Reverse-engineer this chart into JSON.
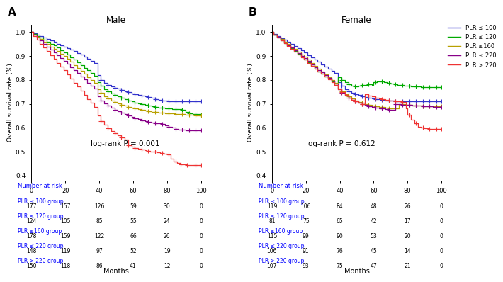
{
  "title_A": "Male",
  "title_B": "Female",
  "label_A": "A",
  "label_B": "B",
  "ylabel": "Overall survival rate (%)",
  "xlabel": "Months",
  "logrank_A": "log-rank P = 0.001",
  "logrank_B": "log-rank P = 0.612",
  "xlim": [
    0,
    100
  ],
  "ylim": [
    0.38,
    1.03
  ],
  "xticks": [
    0,
    20,
    40,
    60,
    80,
    100
  ],
  "yticks": [
    0.4,
    0.5,
    0.6,
    0.7,
    0.8,
    0.9,
    1.0
  ],
  "colors": {
    "plr100": "#3333cc",
    "plr120": "#00aa00",
    "plr160": "#b8a000",
    "plr220": "#880088",
    "plr220p": "#ee3333"
  },
  "legend_labels": [
    "PLR ≤ 100",
    "PLR ≤ 120",
    "PLR ≤160",
    "PLR ≤ 220",
    "PLR > 220"
  ],
  "male": {
    "plr100": {
      "times": [
        0,
        1,
        3,
        5,
        7,
        9,
        11,
        13,
        15,
        17,
        19,
        21,
        23,
        25,
        27,
        29,
        31,
        33,
        35,
        37,
        39,
        41,
        43,
        45,
        47,
        49,
        51,
        53,
        55,
        57,
        59,
        61,
        63,
        65,
        67,
        69,
        71,
        73,
        75,
        77,
        79,
        81,
        83,
        85,
        87,
        89,
        91,
        93,
        95,
        97,
        100
      ],
      "surv": [
        1.0,
        0.994,
        0.988,
        0.983,
        0.977,
        0.971,
        0.965,
        0.958,
        0.952,
        0.946,
        0.94,
        0.934,
        0.927,
        0.921,
        0.913,
        0.905,
        0.897,
        0.889,
        0.88,
        0.872,
        0.82,
        0.8,
        0.788,
        0.778,
        0.773,
        0.768,
        0.763,
        0.758,
        0.752,
        0.748,
        0.744,
        0.74,
        0.737,
        0.734,
        0.73,
        0.727,
        0.724,
        0.721,
        0.718,
        0.715,
        0.713,
        0.712,
        0.711,
        0.71,
        0.71,
        0.71,
        0.71,
        0.71,
        0.71,
        0.71,
        0.71
      ],
      "censors": [
        41,
        45,
        49,
        53,
        57,
        61,
        65,
        69,
        73,
        77,
        81,
        85,
        89,
        93,
        97,
        100
      ]
    },
    "plr120": {
      "times": [
        0,
        1,
        3,
        5,
        7,
        9,
        11,
        13,
        15,
        17,
        19,
        21,
        23,
        25,
        27,
        29,
        31,
        33,
        35,
        37,
        39,
        41,
        43,
        45,
        47,
        49,
        51,
        53,
        55,
        57,
        59,
        61,
        63,
        65,
        67,
        69,
        71,
        73,
        75,
        77,
        79,
        81,
        83,
        85,
        87,
        89,
        91,
        93,
        95,
        97,
        100
      ],
      "surv": [
        1.0,
        0.992,
        0.984,
        0.976,
        0.968,
        0.96,
        0.952,
        0.944,
        0.935,
        0.925,
        0.915,
        0.905,
        0.895,
        0.884,
        0.873,
        0.862,
        0.851,
        0.84,
        0.829,
        0.818,
        0.79,
        0.775,
        0.762,
        0.752,
        0.744,
        0.737,
        0.731,
        0.726,
        0.72,
        0.715,
        0.71,
        0.706,
        0.702,
        0.698,
        0.695,
        0.692,
        0.689,
        0.687,
        0.685,
        0.683,
        0.681,
        0.68,
        0.679,
        0.678,
        0.677,
        0.676,
        0.665,
        0.66,
        0.658,
        0.656,
        0.655
      ],
      "censors": [
        41,
        45,
        49,
        53,
        57,
        61,
        65,
        69,
        73,
        77,
        81,
        85,
        89,
        93,
        97,
        100
      ]
    },
    "plr160": {
      "times": [
        0,
        1,
        3,
        5,
        7,
        9,
        11,
        13,
        15,
        17,
        19,
        21,
        23,
        25,
        27,
        29,
        31,
        33,
        35,
        37,
        39,
        41,
        43,
        45,
        47,
        49,
        51,
        53,
        55,
        57,
        59,
        61,
        63,
        65,
        67,
        69,
        71,
        73,
        75,
        77,
        79,
        81,
        83,
        85,
        87,
        89,
        91,
        93,
        95,
        97,
        100
      ],
      "surv": [
        1.0,
        0.99,
        0.98,
        0.97,
        0.96,
        0.95,
        0.94,
        0.93,
        0.92,
        0.91,
        0.9,
        0.888,
        0.876,
        0.863,
        0.85,
        0.837,
        0.825,
        0.812,
        0.8,
        0.788,
        0.76,
        0.745,
        0.732,
        0.722,
        0.715,
        0.708,
        0.702,
        0.697,
        0.692,
        0.688,
        0.684,
        0.68,
        0.677,
        0.674,
        0.671,
        0.669,
        0.667,
        0.665,
        0.663,
        0.662,
        0.661,
        0.66,
        0.659,
        0.658,
        0.657,
        0.656,
        0.655,
        0.654,
        0.653,
        0.652,
        0.652
      ],
      "censors": [
        41,
        45,
        49,
        53,
        57,
        61,
        65,
        69,
        73,
        77,
        81,
        85,
        89,
        93,
        97,
        100
      ]
    },
    "plr220": {
      "times": [
        0,
        1,
        3,
        5,
        7,
        9,
        11,
        13,
        15,
        17,
        19,
        21,
        23,
        25,
        27,
        29,
        31,
        33,
        35,
        37,
        39,
        41,
        43,
        45,
        47,
        49,
        51,
        53,
        55,
        57,
        59,
        61,
        63,
        65,
        67,
        69,
        71,
        73,
        75,
        77,
        79,
        81,
        83,
        85,
        87,
        89,
        91,
        93,
        95,
        97,
        100
      ],
      "surv": [
        1.0,
        0.988,
        0.976,
        0.964,
        0.952,
        0.94,
        0.928,
        0.916,
        0.904,
        0.892,
        0.88,
        0.867,
        0.854,
        0.841,
        0.828,
        0.815,
        0.802,
        0.789,
        0.776,
        0.763,
        0.73,
        0.715,
        0.702,
        0.692,
        0.683,
        0.675,
        0.668,
        0.662,
        0.656,
        0.65,
        0.645,
        0.64,
        0.636,
        0.632,
        0.629,
        0.626,
        0.623,
        0.62,
        0.618,
        0.616,
        0.61,
        0.605,
        0.6,
        0.596,
        0.593,
        0.591,
        0.59,
        0.589,
        0.589,
        0.589,
        0.589
      ],
      "censors": [
        41,
        45,
        49,
        53,
        57,
        61,
        65,
        69,
        73,
        77,
        81,
        85,
        89,
        93,
        97,
        100
      ]
    },
    "plr220p": {
      "times": [
        0,
        1,
        3,
        5,
        7,
        9,
        11,
        13,
        15,
        17,
        19,
        21,
        23,
        25,
        27,
        29,
        31,
        33,
        35,
        37,
        39,
        41,
        43,
        45,
        47,
        49,
        51,
        53,
        55,
        57,
        59,
        61,
        63,
        65,
        67,
        68,
        70,
        72,
        74,
        76,
        78,
        80,
        82,
        84,
        86,
        88,
        90,
        92,
        95,
        97,
        100
      ],
      "surv": [
        1.0,
        0.984,
        0.968,
        0.952,
        0.936,
        0.92,
        0.904,
        0.888,
        0.872,
        0.856,
        0.84,
        0.823,
        0.806,
        0.789,
        0.772,
        0.755,
        0.738,
        0.721,
        0.704,
        0.688,
        0.65,
        0.628,
        0.612,
        0.598,
        0.586,
        0.576,
        0.568,
        0.56,
        0.552,
        0.528,
        0.52,
        0.515,
        0.511,
        0.508,
        0.505,
        0.503,
        0.501,
        0.499,
        0.497,
        0.495,
        0.493,
        0.49,
        0.47,
        0.46,
        0.452,
        0.448,
        0.446,
        0.445,
        0.445,
        0.445,
        0.445
      ],
      "censors": [
        41,
        45,
        49,
        53,
        57,
        61,
        65,
        69,
        73,
        77,
        81,
        85,
        88,
        92,
        97,
        100
      ]
    }
  },
  "female": {
    "plr100": {
      "times": [
        0,
        1,
        3,
        5,
        7,
        9,
        11,
        13,
        15,
        17,
        19,
        21,
        23,
        25,
        27,
        29,
        31,
        33,
        35,
        37,
        39,
        41,
        43,
        45,
        47,
        49,
        51,
        53,
        55,
        57,
        59,
        61,
        63,
        65,
        67,
        69,
        71,
        73,
        75,
        77,
        79,
        81,
        83,
        85,
        87,
        89,
        91,
        93,
        95,
        97,
        100
      ],
      "surv": [
        1.0,
        0.992,
        0.983,
        0.975,
        0.967,
        0.959,
        0.95,
        0.941,
        0.932,
        0.923,
        0.914,
        0.904,
        0.895,
        0.885,
        0.876,
        0.866,
        0.856,
        0.847,
        0.837,
        0.828,
        0.79,
        0.775,
        0.762,
        0.752,
        0.745,
        0.74,
        0.736,
        0.732,
        0.729,
        0.726,
        0.723,
        0.721,
        0.719,
        0.717,
        0.715,
        0.714,
        0.713,
        0.712,
        0.712,
        0.711,
        0.711,
        0.711,
        0.71,
        0.71,
        0.71,
        0.71,
        0.71,
        0.71,
        0.71,
        0.71,
        0.71
      ],
      "censors": [
        41,
        45,
        49,
        53,
        57,
        61,
        65,
        69,
        73,
        77,
        81,
        85,
        89,
        93,
        97,
        100
      ]
    },
    "plr120": {
      "times": [
        0,
        1,
        3,
        5,
        7,
        9,
        11,
        13,
        15,
        17,
        19,
        21,
        23,
        25,
        27,
        29,
        31,
        33,
        35,
        37,
        39,
        41,
        43,
        45,
        47,
        49,
        51,
        53,
        55,
        57,
        59,
        60,
        62,
        64,
        66,
        68,
        70,
        72,
        74,
        76,
        78,
        80,
        82,
        84,
        86,
        88,
        90,
        92,
        95,
        97,
        100
      ],
      "surv": [
        1.0,
        0.988,
        0.976,
        0.965,
        0.954,
        0.943,
        0.932,
        0.921,
        0.91,
        0.898,
        0.886,
        0.873,
        0.86,
        0.848,
        0.836,
        0.825,
        0.814,
        0.804,
        0.794,
        0.784,
        0.81,
        0.8,
        0.79,
        0.782,
        0.776,
        0.772,
        0.775,
        0.778,
        0.78,
        0.782,
        0.78,
        0.79,
        0.795,
        0.793,
        0.79,
        0.787,
        0.784,
        0.782,
        0.78,
        0.778,
        0.776,
        0.775,
        0.774,
        0.773,
        0.772,
        0.771,
        0.77,
        0.77,
        0.77,
        0.77,
        0.77
      ],
      "censors": [
        41,
        45,
        49,
        53,
        57,
        61,
        65,
        69,
        73,
        77,
        81,
        85,
        89,
        93,
        97,
        100
      ]
    },
    "plr160": {
      "times": [
        0,
        1,
        3,
        5,
        7,
        9,
        11,
        13,
        15,
        17,
        19,
        21,
        23,
        25,
        27,
        29,
        31,
        33,
        35,
        37,
        39,
        41,
        43,
        45,
        47,
        49,
        51,
        53,
        55,
        57,
        59,
        61,
        63,
        65,
        67,
        69,
        71,
        73,
        75,
        77,
        79,
        81,
        83,
        85,
        87,
        89,
        91,
        93,
        95,
        97,
        100
      ],
      "surv": [
        1.0,
        0.99,
        0.98,
        0.97,
        0.96,
        0.95,
        0.94,
        0.929,
        0.918,
        0.907,
        0.896,
        0.884,
        0.872,
        0.86,
        0.848,
        0.836,
        0.824,
        0.812,
        0.8,
        0.788,
        0.765,
        0.752,
        0.74,
        0.73,
        0.722,
        0.715,
        0.709,
        0.704,
        0.7,
        0.696,
        0.693,
        0.69,
        0.688,
        0.686,
        0.684,
        0.682,
        0.681,
        0.68,
        0.7,
        0.698,
        0.696,
        0.695,
        0.694,
        0.693,
        0.692,
        0.691,
        0.69,
        0.689,
        0.689,
        0.689,
        0.689
      ],
      "censors": [
        41,
        45,
        49,
        53,
        57,
        61,
        65,
        69,
        73,
        77,
        81,
        85,
        89,
        93,
        97,
        100
      ]
    },
    "plr220": {
      "times": [
        0,
        1,
        3,
        5,
        7,
        9,
        11,
        13,
        15,
        17,
        19,
        21,
        23,
        25,
        27,
        29,
        31,
        33,
        35,
        37,
        39,
        41,
        43,
        45,
        47,
        49,
        51,
        53,
        55,
        57,
        59,
        61,
        63,
        65,
        67,
        69,
        71,
        73,
        75,
        77,
        79,
        81,
        83,
        85,
        87,
        89,
        91,
        93,
        95,
        97,
        100
      ],
      "surv": [
        1.0,
        0.99,
        0.979,
        0.968,
        0.957,
        0.946,
        0.935,
        0.924,
        0.913,
        0.901,
        0.89,
        0.878,
        0.866,
        0.854,
        0.842,
        0.831,
        0.82,
        0.808,
        0.797,
        0.786,
        0.76,
        0.747,
        0.735,
        0.725,
        0.717,
        0.71,
        0.704,
        0.699,
        0.695,
        0.691,
        0.688,
        0.685,
        0.682,
        0.68,
        0.678,
        0.676,
        0.675,
        0.7,
        0.698,
        0.697,
        0.696,
        0.695,
        0.694,
        0.693,
        0.692,
        0.691,
        0.69,
        0.689,
        0.688,
        0.688,
        0.688
      ],
      "censors": [
        41,
        45,
        49,
        53,
        57,
        61,
        65,
        69,
        73,
        77,
        81,
        85,
        89,
        93,
        97,
        100
      ]
    },
    "plr220p": {
      "times": [
        0,
        1,
        3,
        5,
        7,
        9,
        11,
        13,
        15,
        17,
        19,
        21,
        23,
        25,
        27,
        29,
        31,
        33,
        35,
        37,
        39,
        41,
        43,
        45,
        47,
        49,
        51,
        53,
        55,
        57,
        59,
        61,
        63,
        65,
        67,
        69,
        71,
        73,
        75,
        77,
        79,
        80,
        82,
        84,
        86,
        88,
        90,
        92,
        95,
        97,
        100
      ],
      "surv": [
        1.0,
        0.989,
        0.977,
        0.965,
        0.953,
        0.941,
        0.929,
        0.917,
        0.906,
        0.895,
        0.884,
        0.872,
        0.86,
        0.848,
        0.836,
        0.825,
        0.813,
        0.802,
        0.791,
        0.78,
        0.762,
        0.748,
        0.736,
        0.726,
        0.718,
        0.711,
        0.705,
        0.7,
        0.74,
        0.735,
        0.73,
        0.726,
        0.723,
        0.72,
        0.718,
        0.715,
        0.713,
        0.711,
        0.71,
        0.708,
        0.68,
        0.655,
        0.635,
        0.618,
        0.605,
        0.6,
        0.597,
        0.595,
        0.595,
        0.595,
        0.595
      ],
      "censors": [
        41,
        45,
        49,
        53,
        57,
        61,
        65,
        69,
        73,
        77,
        81,
        85,
        89,
        93,
        97,
        100
      ]
    }
  },
  "risk_table_male": {
    "labels": [
      "PLR ≤ 100 group",
      "PLR ≤ 120 group",
      "PLR ≤160 group",
      "PLR ≤ 220 group",
      "PLR > 220 group"
    ],
    "t0": [
      177,
      124,
      178,
      148,
      150
    ],
    "t20": [
      157,
      105,
      159,
      119,
      118
    ],
    "t40": [
      126,
      85,
      122,
      97,
      86
    ],
    "t60": [
      59,
      55,
      66,
      52,
      41
    ],
    "t80": [
      30,
      24,
      26,
      19,
      12
    ],
    "t100": [
      0,
      0,
      0,
      0,
      0
    ]
  },
  "risk_table_female": {
    "labels": [
      "PLR ≤ 100 group",
      "PLR ≤ 120 group",
      "PLR ≤160 group",
      "PLR ≤ 220 group",
      "PLR > 220 group"
    ],
    "t0": [
      119,
      81,
      115,
      106,
      107
    ],
    "t20": [
      106,
      75,
      99,
      91,
      93
    ],
    "t40": [
      84,
      65,
      90,
      76,
      75
    ],
    "t60": [
      48,
      42,
      53,
      45,
      47
    ],
    "t80": [
      26,
      17,
      20,
      14,
      21
    ],
    "t100": [
      0,
      0,
      0,
      0,
      0
    ]
  }
}
